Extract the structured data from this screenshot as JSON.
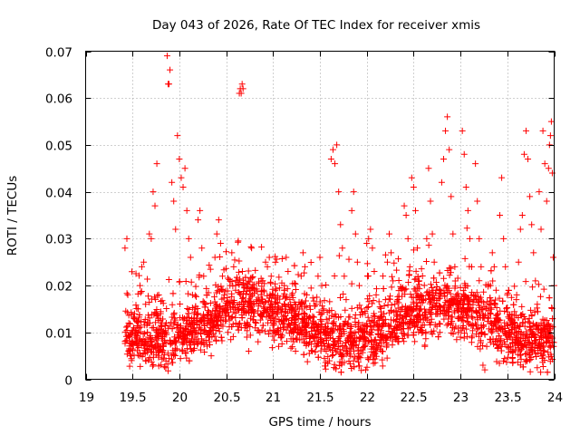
{
  "chart_data": {
    "type": "scatter",
    "title": "Day 043 of 2026, Rate Of TEC Index for receiver xmis",
    "xlabel": "GPS time / hours",
    "ylabel": "ROTI / TECUs",
    "xlim": [
      19,
      24
    ],
    "ylim": [
      0,
      0.07
    ],
    "x_ticks": [
      19,
      19.5,
      20,
      20.5,
      21,
      21.5,
      22,
      22.5,
      23,
      23.5,
      24
    ],
    "x_tick_labels": [
      "19",
      "19.5",
      "20",
      "20.5",
      "21",
      "21.5",
      "22",
      "22.5",
      "23",
      "23.5",
      "24"
    ],
    "y_ticks": [
      0,
      0.01,
      0.02,
      0.03,
      0.04,
      0.05,
      0.06,
      0.07
    ],
    "y_tick_labels": [
      "0",
      "0.01",
      "0.02",
      "0.03",
      "0.04",
      "0.05",
      "0.06",
      "0.07"
    ],
    "grid": true,
    "marker": "plus",
    "marker_color": "#ff0000",
    "series": [
      {
        "points": [
          [
            19.42,
            0.028
          ],
          [
            19.44,
            0.03
          ],
          [
            19.45,
            0.018
          ],
          [
            19.46,
            0.012
          ],
          [
            19.47,
            0.009
          ],
          [
            19.48,
            0.005
          ],
          [
            19.49,
            0.004
          ],
          [
            19.5,
            0.01
          ],
          [
            19.52,
            0.013
          ],
          [
            19.54,
            0.008
          ],
          [
            19.56,
            0.015
          ],
          [
            19.58,
            0.02
          ],
          [
            19.6,
            0.024
          ],
          [
            19.62,
            0.025
          ],
          [
            19.64,
            0.016
          ],
          [
            19.66,
            0.012
          ],
          [
            19.68,
            0.031
          ],
          [
            19.7,
            0.03
          ],
          [
            19.72,
            0.04
          ],
          [
            19.74,
            0.037
          ],
          [
            19.76,
            0.046
          ],
          [
            19.78,
            0.018
          ],
          [
            19.8,
            0.014
          ],
          [
            19.82,
            0.01
          ],
          [
            19.84,
            0.008
          ],
          [
            19.86,
            0.012
          ],
          [
            19.87,
            0.069
          ],
          [
            19.88,
            0.063
          ],
          [
            19.89,
            0.063
          ],
          [
            19.9,
            0.066
          ],
          [
            19.92,
            0.042
          ],
          [
            19.94,
            0.038
          ],
          [
            19.96,
            0.032
          ],
          [
            19.98,
            0.052
          ],
          [
            20.0,
            0.047
          ],
          [
            20.02,
            0.043
          ],
          [
            20.04,
            0.041
          ],
          [
            20.06,
            0.045
          ],
          [
            20.08,
            0.036
          ],
          [
            20.1,
            0.03
          ],
          [
            20.12,
            0.026
          ],
          [
            20.14,
            0.018
          ],
          [
            20.16,
            0.014
          ],
          [
            20.18,
            0.01
          ],
          [
            20.2,
            0.034
          ],
          [
            20.22,
            0.036
          ],
          [
            20.24,
            0.028
          ],
          [
            20.26,
            0.022
          ],
          [
            20.28,
            0.016
          ],
          [
            20.3,
            0.012
          ],
          [
            20.32,
            0.008
          ],
          [
            20.34,
            0.005
          ],
          [
            20.36,
            0.011
          ],
          [
            20.38,
            0.026
          ],
          [
            20.4,
            0.031
          ],
          [
            20.42,
            0.034
          ],
          [
            20.44,
            0.029
          ],
          [
            20.46,
            0.022
          ],
          [
            20.48,
            0.018
          ],
          [
            20.5,
            0.014
          ],
          [
            20.52,
            0.01
          ],
          [
            20.54,
            0.02
          ],
          [
            20.56,
            0.027
          ],
          [
            20.58,
            0.024
          ],
          [
            20.6,
            0.019
          ],
          [
            20.62,
            0.015
          ],
          [
            20.64,
            0.061
          ],
          [
            20.65,
            0.062
          ],
          [
            20.66,
            0.061
          ],
          [
            20.67,
            0.063
          ],
          [
            20.68,
            0.062
          ],
          [
            20.7,
            0.011
          ],
          [
            20.72,
            0.009
          ],
          [
            20.74,
            0.006
          ],
          [
            20.76,
            0.013
          ],
          [
            20.78,
            0.018
          ],
          [
            20.8,
            0.016
          ],
          [
            20.82,
            0.012
          ],
          [
            20.84,
            0.008
          ],
          [
            20.86,
            0.01
          ],
          [
            20.88,
            0.014
          ],
          [
            20.9,
            0.019
          ],
          [
            20.92,
            0.025
          ],
          [
            20.94,
            0.024
          ],
          [
            20.96,
            0.026
          ],
          [
            20.98,
            0.022
          ],
          [
            21.0,
            0.018
          ],
          [
            21.02,
            0.013
          ],
          [
            21.04,
            0.01
          ],
          [
            21.06,
            0.007
          ],
          [
            21.08,
            0.011
          ],
          [
            21.1,
            0.015
          ],
          [
            21.12,
            0.02
          ],
          [
            21.14,
            0.026
          ],
          [
            21.16,
            0.023
          ],
          [
            21.18,
            0.017
          ],
          [
            21.2,
            0.012
          ],
          [
            21.22,
            0.008
          ],
          [
            21.24,
            0.006
          ],
          [
            21.26,
            0.01
          ],
          [
            21.28,
            0.015
          ],
          [
            21.3,
            0.022
          ],
          [
            21.32,
            0.027
          ],
          [
            21.34,
            0.024
          ],
          [
            21.36,
            0.018
          ],
          [
            21.38,
            0.013
          ],
          [
            21.4,
            0.009
          ],
          [
            21.42,
            0.006
          ],
          [
            21.44,
            0.011
          ],
          [
            21.46,
            0.016
          ],
          [
            21.48,
            0.022
          ],
          [
            21.5,
            0.026
          ],
          [
            21.52,
            0.02
          ],
          [
            21.54,
            0.015
          ],
          [
            21.56,
            0.01
          ],
          [
            21.58,
            0.007
          ],
          [
            21.6,
            0.013
          ],
          [
            21.62,
            0.047
          ],
          [
            21.64,
            0.049
          ],
          [
            21.66,
            0.046
          ],
          [
            21.68,
            0.05
          ],
          [
            21.7,
            0.04
          ],
          [
            21.72,
            0.033
          ],
          [
            21.74,
            0.028
          ],
          [
            21.76,
            0.022
          ],
          [
            21.78,
            0.017
          ],
          [
            21.8,
            0.012
          ],
          [
            21.82,
            0.009
          ],
          [
            21.84,
            0.036
          ],
          [
            21.86,
            0.04
          ],
          [
            21.88,
            0.031
          ],
          [
            21.9,
            0.025
          ],
          [
            21.92,
            0.02
          ],
          [
            21.94,
            0.015
          ],
          [
            21.96,
            0.01
          ],
          [
            21.98,
            0.007
          ],
          [
            22.0,
            0.029
          ],
          [
            22.02,
            0.03
          ],
          [
            22.04,
            0.032
          ],
          [
            22.06,
            0.028
          ],
          [
            22.08,
            0.023
          ],
          [
            22.1,
            0.018
          ],
          [
            22.12,
            0.013
          ],
          [
            22.14,
            0.009
          ],
          [
            22.16,
            0.006
          ],
          [
            22.18,
            0.012
          ],
          [
            22.2,
            0.017
          ],
          [
            22.22,
            0.025
          ],
          [
            22.24,
            0.031
          ],
          [
            22.26,
            0.027
          ],
          [
            22.28,
            0.021
          ],
          [
            22.3,
            0.016
          ],
          [
            22.32,
            0.011
          ],
          [
            22.34,
            0.008
          ],
          [
            22.36,
            0.013
          ],
          [
            22.38,
            0.019
          ],
          [
            22.4,
            0.037
          ],
          [
            22.42,
            0.035
          ],
          [
            22.44,
            0.03
          ],
          [
            22.46,
            0.024
          ],
          [
            22.48,
            0.043
          ],
          [
            22.5,
            0.041
          ],
          [
            22.52,
            0.036
          ],
          [
            22.54,
            0.028
          ],
          [
            22.56,
            0.021
          ],
          [
            22.58,
            0.015
          ],
          [
            22.6,
            0.01
          ],
          [
            22.62,
            0.007
          ],
          [
            22.64,
            0.03
          ],
          [
            22.66,
            0.045
          ],
          [
            22.68,
            0.038
          ],
          [
            22.7,
            0.031
          ],
          [
            22.72,
            0.025
          ],
          [
            22.74,
            0.019
          ],
          [
            22.76,
            0.014
          ],
          [
            22.78,
            0.01
          ],
          [
            22.8,
            0.042
          ],
          [
            22.82,
            0.047
          ],
          [
            22.84,
            0.053
          ],
          [
            22.86,
            0.056
          ],
          [
            22.88,
            0.049
          ],
          [
            22.9,
            0.039
          ],
          [
            22.92,
            0.031
          ],
          [
            22.94,
            0.024
          ],
          [
            22.96,
            0.018
          ],
          [
            22.98,
            0.013
          ],
          [
            23.0,
            0.009
          ],
          [
            23.02,
            0.053
          ],
          [
            23.04,
            0.048
          ],
          [
            23.06,
            0.041
          ],
          [
            23.08,
            0.036
          ],
          [
            23.1,
            0.03
          ],
          [
            23.12,
            0.024
          ],
          [
            23.14,
            0.018
          ],
          [
            23.16,
            0.046
          ],
          [
            23.18,
            0.038
          ],
          [
            23.2,
            0.03
          ],
          [
            23.22,
            0.024
          ],
          [
            23.24,
            0.003
          ],
          [
            23.26,
            0.002
          ],
          [
            23.28,
            0.007
          ],
          [
            23.3,
            0.013
          ],
          [
            23.32,
            0.02
          ],
          [
            23.34,
            0.027
          ],
          [
            23.36,
            0.024
          ],
          [
            23.38,
            0.019
          ],
          [
            23.4,
            0.014
          ],
          [
            23.42,
            0.035
          ],
          [
            23.44,
            0.043
          ],
          [
            23.46,
            0.03
          ],
          [
            23.48,
            0.024
          ],
          [
            23.5,
            0.018
          ],
          [
            23.52,
            0.013
          ],
          [
            23.54,
            0.009
          ],
          [
            23.56,
            0.006
          ],
          [
            23.58,
            0.012
          ],
          [
            23.6,
            0.018
          ],
          [
            23.62,
            0.025
          ],
          [
            23.64,
            0.032
          ],
          [
            23.66,
            0.035
          ],
          [
            23.68,
            0.048
          ],
          [
            23.7,
            0.053
          ],
          [
            23.72,
            0.047
          ],
          [
            23.74,
            0.039
          ],
          [
            23.76,
            0.033
          ],
          [
            23.78,
            0.027
          ],
          [
            23.8,
            0.021
          ],
          [
            23.82,
            0.016
          ],
          [
            23.84,
            0.04
          ],
          [
            23.86,
            0.032
          ],
          [
            23.88,
            0.053
          ],
          [
            23.9,
            0.046
          ],
          [
            23.92,
            0.038
          ],
          [
            23.94,
            0.045
          ],
          [
            23.95,
            0.05
          ],
          [
            23.96,
            0.052
          ],
          [
            23.97,
            0.055
          ],
          [
            23.98,
            0.044
          ],
          [
            23.99,
            0.026
          ],
          [
            24.0,
            0.02
          ]
        ]
      }
    ],
    "background_band": {
      "x_start": 19.42,
      "x_end": 24.0,
      "y_center_min": 0.008,
      "y_center_max": 0.016,
      "y_spread": 0.009,
      "count": 2600
    }
  }
}
